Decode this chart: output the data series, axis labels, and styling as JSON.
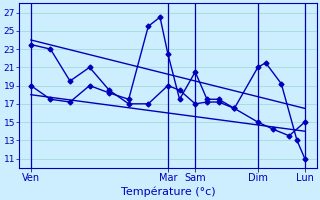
{
  "title": "Température (°c)",
  "background_color": "#cceeff",
  "grid_color": "#aadddd",
  "line_color": "#0000bb",
  "ylim": [
    10,
    28
  ],
  "yticks": [
    11,
    13,
    15,
    17,
    19,
    21,
    23,
    25,
    27
  ],
  "xlim": [
    -0.3,
    7.3
  ],
  "x_ticks_labels": [
    "Ven",
    "Mar",
    "Sam",
    "Dim",
    "Lun"
  ],
  "x_ticks_pos": [
    0,
    3.5,
    4.2,
    5.8,
    7.0
  ],
  "vlines": [
    0,
    3.5,
    4.2,
    5.8,
    7.0
  ],
  "series1_x": [
    0,
    0.5,
    1.0,
    1.5,
    2.0,
    2.5,
    3.0,
    3.5,
    3.8,
    4.2,
    4.5,
    4.8,
    5.2,
    5.8,
    6.2,
    6.6,
    7.0
  ],
  "series1_y": [
    23.5,
    23.0,
    19.5,
    21.0,
    18.5,
    17.0,
    17.0,
    19.0,
    18.5,
    17.0,
    17.2,
    17.2,
    16.5,
    15.0,
    14.2,
    13.5,
    15.0
  ],
  "series2_x": [
    0,
    0.5,
    1.0,
    1.5,
    2.0,
    2.5,
    3.0,
    3.3,
    3.5,
    3.8,
    4.2,
    4.5,
    4.8,
    5.2,
    5.8,
    6.0,
    6.4,
    6.8,
    7.0
  ],
  "series2_y": [
    19.0,
    17.5,
    17.2,
    19.0,
    18.2,
    17.5,
    25.5,
    26.5,
    22.5,
    17.5,
    20.5,
    17.5,
    17.5,
    16.5,
    21.0,
    21.5,
    19.2,
    13.0,
    11.0
  ],
  "trend1_x": [
    0,
    7.0
  ],
  "trend1_y": [
    24.0,
    16.5
  ],
  "trend2_x": [
    0,
    7.0
  ],
  "trend2_y": [
    18.0,
    14.0
  ]
}
